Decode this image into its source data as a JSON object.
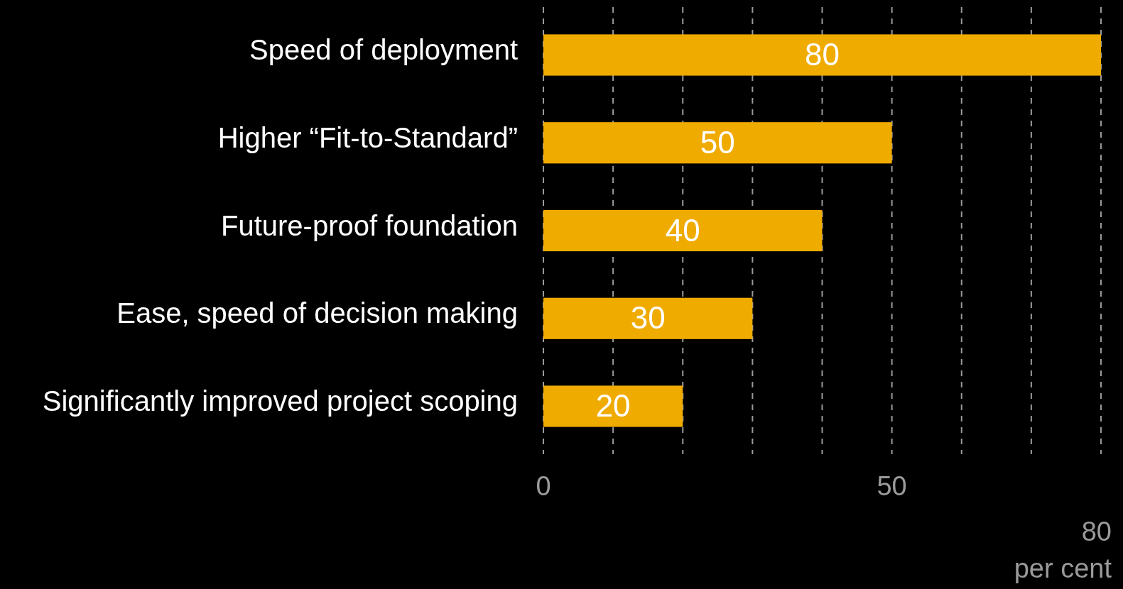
{
  "chart_data": {
    "type": "bar",
    "orientation": "horizontal",
    "categories": [
      "Speed of deployment",
      "Higher “Fit-to-Standard”",
      "Future-proof foundation",
      "Ease, speed of decision making",
      "Significantly improved project scoping"
    ],
    "values": [
      80,
      50,
      40,
      30,
      20
    ],
    "color": "#f0ab00",
    "data_labels": true,
    "xlim": [
      0,
      80
    ],
    "xticks": [
      0,
      {
        "value": 10,
        "label": null
      },
      {
        "value": 20,
        "label": null
      },
      {
        "value": 30,
        "label": null
      },
      {
        "value": 40,
        "label": null
      },
      50,
      {
        "value": 60,
        "label": null
      },
      {
        "value": 70,
        "label": null
      },
      {
        "value": 80,
        "label": null
      }
    ],
    "xlabel": "80 per cent",
    "grid": "x"
  }
}
